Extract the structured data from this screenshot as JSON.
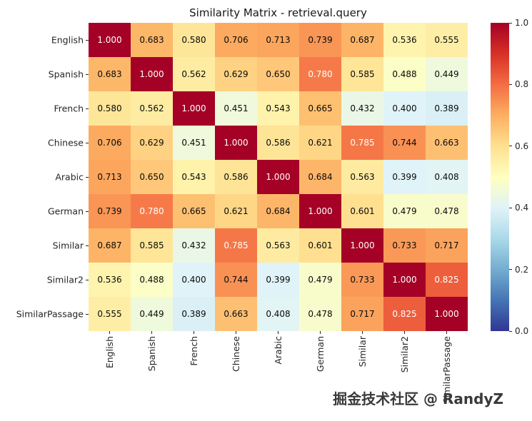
{
  "chart_data": {
    "type": "heatmap",
    "title": "Similarity Matrix - retrieval.query",
    "xlabel": "",
    "ylabel": "",
    "categories": [
      "English",
      "Spanish",
      "French",
      "Chinese",
      "Arabic",
      "German",
      "Similar",
      "Similar2",
      "SimilarPassage"
    ],
    "matrix": [
      [
        1.0,
        0.683,
        0.58,
        0.706,
        0.713,
        0.739,
        0.687,
        0.536,
        0.555
      ],
      [
        0.683,
        1.0,
        0.562,
        0.629,
        0.65,
        0.78,
        0.585,
        0.488,
        0.449
      ],
      [
        0.58,
        0.562,
        1.0,
        0.451,
        0.543,
        0.665,
        0.432,
        0.4,
        0.389
      ],
      [
        0.706,
        0.629,
        0.451,
        1.0,
        0.586,
        0.621,
        0.785,
        0.744,
        0.663
      ],
      [
        0.713,
        0.65,
        0.543,
        0.586,
        1.0,
        0.684,
        0.563,
        0.399,
        0.408
      ],
      [
        0.739,
        0.78,
        0.665,
        0.621,
        0.684,
        1.0,
        0.601,
        0.479,
        0.478
      ],
      [
        0.687,
        0.585,
        0.432,
        0.785,
        0.563,
        0.601,
        1.0,
        0.733,
        0.717
      ],
      [
        0.536,
        0.488,
        0.4,
        0.744,
        0.399,
        0.479,
        0.733,
        1.0,
        0.825
      ],
      [
        0.555,
        0.449,
        0.389,
        0.663,
        0.408,
        0.478,
        0.717,
        0.825,
        1.0
      ]
    ],
    "vmin": 0.0,
    "vmax": 1.0,
    "value_format": "3-decimals",
    "colormap": "RdYlBu_r",
    "colorbar": {
      "position": "right",
      "ticks": [
        0.0,
        0.2,
        0.4,
        0.6,
        0.8,
        1.0
      ]
    },
    "grid": false
  },
  "colors": {
    "background": "#ffffff",
    "text": "#262626",
    "annotation_light": "#ffffff",
    "annotation_dark": "#0a0a0a",
    "colormap_anchors": [
      "#313695",
      "#4575b4",
      "#74add1",
      "#abd9e9",
      "#e0f3f8",
      "#ffffbf",
      "#fee090",
      "#fdae61",
      "#f46d43",
      "#d73027",
      "#a50026"
    ]
  },
  "watermark": {
    "text": "掘金技术社区 @ RandyZ"
  }
}
